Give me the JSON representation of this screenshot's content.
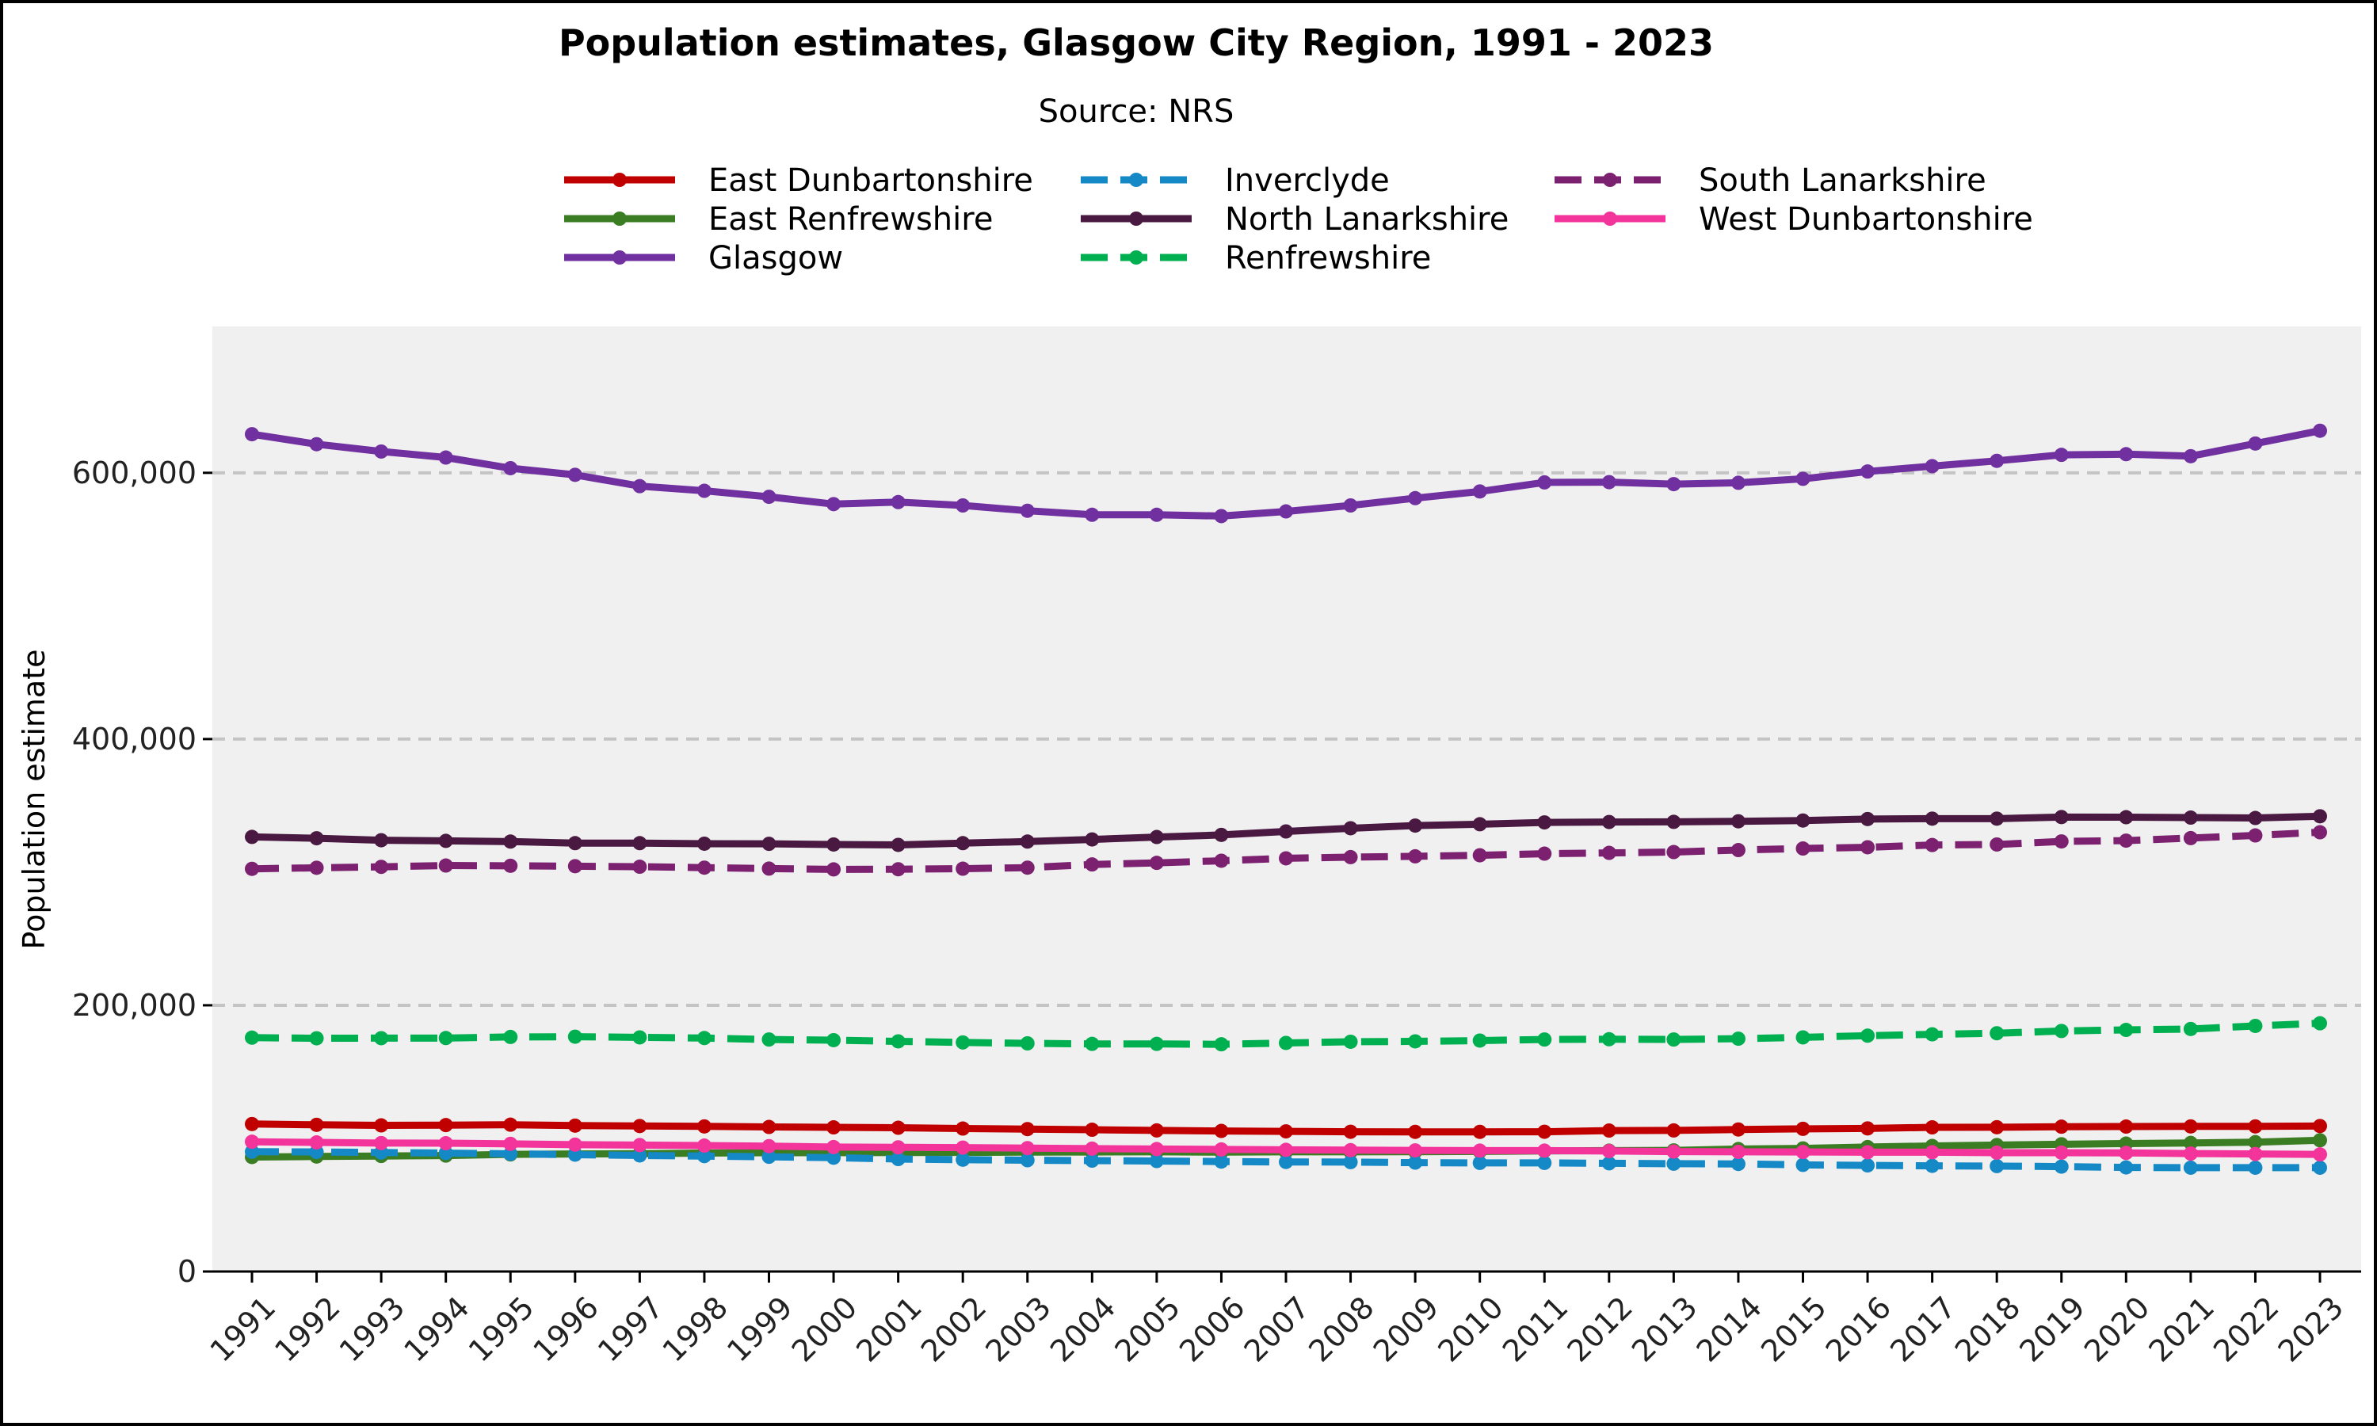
{
  "chart_data": {
    "type": "line",
    "title": "Population estimates, Glasgow City Region, 1991 - 2023",
    "subtitle": "Source: NRS",
    "xlabel": "",
    "ylabel": "Population estimate",
    "ylim": [
      0,
      710000
    ],
    "yticks": [
      0,
      200000,
      400000,
      600000
    ],
    "ytick_labels": [
      "0",
      "200,000",
      "400,000",
      "600,000"
    ],
    "grid": "horizontal dashed",
    "legend_position": "top",
    "categories": [
      "1991",
      "1992",
      "1993",
      "1994",
      "1995",
      "1996",
      "1997",
      "1998",
      "1999",
      "2000",
      "2001",
      "2002",
      "2003",
      "2004",
      "2005",
      "2006",
      "2007",
      "2008",
      "2009",
      "2010",
      "2011",
      "2012",
      "2013",
      "2014",
      "2015",
      "2016",
      "2017",
      "2018",
      "2019",
      "2020",
      "2021",
      "2022",
      "2023"
    ],
    "series": [
      {
        "name": "East Dunbartonshire",
        "color": "#c00000",
        "dash": "solid",
        "values": [
          110800,
          110200,
          109800,
          110000,
          110300,
          109600,
          109300,
          109000,
          108600,
          108300,
          108000,
          107400,
          107000,
          106500,
          106000,
          105600,
          105300,
          105000,
          104900,
          104900,
          105000,
          105900,
          106000,
          106700,
          107200,
          107500,
          108300,
          108400,
          108800,
          108900,
          109000,
          109000,
          109300
        ]
      },
      {
        "name": "East Renfrewshire",
        "color": "#3a7d22",
        "dash": "solid",
        "values": [
          86000,
          86400,
          86800,
          87100,
          88000,
          88300,
          88500,
          89000,
          89300,
          89300,
          89400,
          89500,
          89700,
          89800,
          89900,
          89700,
          89900,
          89900,
          90000,
          90200,
          90600,
          90800,
          91000,
          92000,
          92500,
          93500,
          94300,
          95000,
          95600,
          96100,
          96600,
          97200,
          98600
        ]
      },
      {
        "name": "Glasgow",
        "color": "#7030a0",
        "dash": "solid",
        "values": [
          629000,
          621500,
          616000,
          611500,
          603500,
          598500,
          590000,
          586500,
          582000,
          576500,
          578000,
          575500,
          571500,
          568500,
          568500,
          567500,
          571000,
          575500,
          581000,
          586000,
          592800,
          593000,
          591500,
          592500,
          595500,
          601000,
          605000,
          609000,
          613500,
          614000,
          612500,
          622000,
          631600
        ]
      },
      {
        "name": "Inverclyde",
        "color": "#1589c6",
        "dash": "dashed",
        "values": [
          90000,
          89800,
          89400,
          89000,
          88400,
          87800,
          87200,
          86700,
          86200,
          85500,
          84500,
          84000,
          83600,
          83300,
          83000,
          82600,
          82300,
          82200,
          81800,
          81600,
          81600,
          81300,
          81000,
          80800,
          80100,
          79700,
          79400,
          79200,
          78800,
          78200,
          78000,
          78000,
          78000
        ]
      },
      {
        "name": "North Lanarkshire",
        "color": "#4a1942",
        "dash": "solid",
        "values": [
          326500,
          325500,
          324000,
          323500,
          323000,
          321800,
          321800,
          321400,
          321300,
          320800,
          320500,
          321800,
          323000,
          324600,
          326400,
          328000,
          330600,
          333000,
          335000,
          336000,
          337400,
          337700,
          337800,
          338200,
          338800,
          339900,
          340200,
          340200,
          341400,
          341300,
          341000,
          340700,
          342000
        ]
      },
      {
        "name": "Renfrewshire",
        "color": "#00b050",
        "dash": "dashed",
        "values": [
          175700,
          175200,
          175300,
          175400,
          176200,
          176400,
          175900,
          175400,
          174300,
          173800,
          172900,
          172100,
          171400,
          171000,
          171000,
          170700,
          171700,
          172600,
          172900,
          173500,
          174300,
          174500,
          174300,
          174900,
          175900,
          177200,
          178200,
          179000,
          180700,
          181500,
          182200,
          184500,
          186500
        ]
      },
      {
        "name": "South Lanarkshire",
        "color": "#7b2170",
        "dash": "dashed",
        "values": [
          302500,
          303300,
          304000,
          305000,
          304800,
          304500,
          304100,
          303400,
          302700,
          302100,
          302200,
          302600,
          303400,
          305800,
          307000,
          308600,
          310400,
          311300,
          311900,
          312700,
          313900,
          314500,
          315100,
          316600,
          317800,
          318700,
          320400,
          320800,
          323100,
          323700,
          325600,
          327600,
          330000
        ]
      },
      {
        "name": "West Dunbartonshire",
        "color": "#f2349b",
        "dash": "solid",
        "values": [
          97500,
          97000,
          96500,
          96400,
          95900,
          95300,
          95000,
          94600,
          94200,
          93500,
          93300,
          93100,
          92700,
          92300,
          92000,
          91700,
          91400,
          91200,
          91000,
          90800,
          90800,
          90500,
          90100,
          89900,
          89800,
          89600,
          89600,
          89300,
          89300,
          89100,
          88600,
          88300,
          88000
        ]
      }
    ]
  }
}
